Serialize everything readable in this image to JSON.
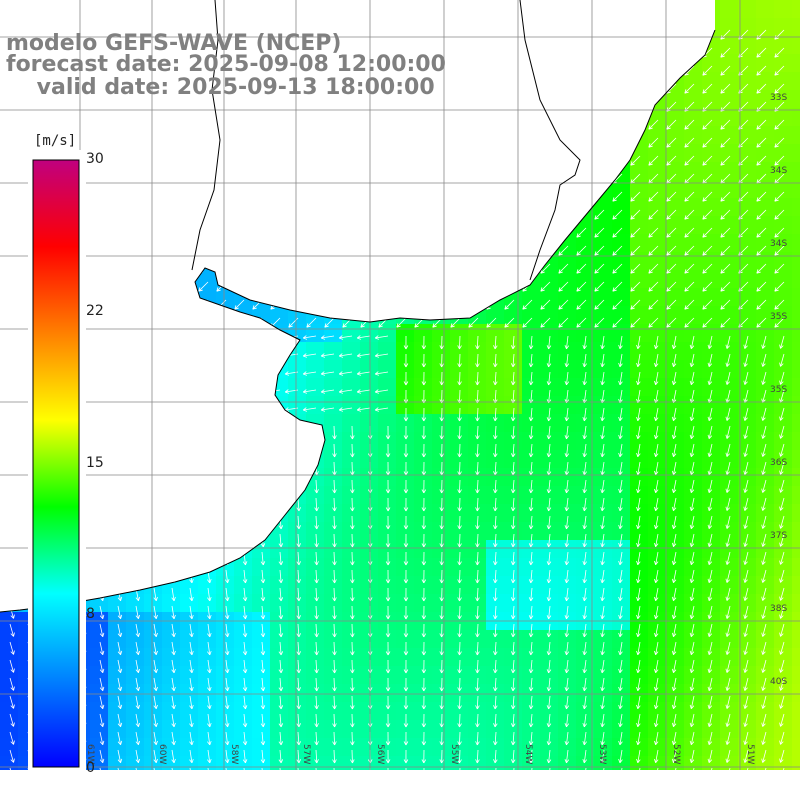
{
  "title": {
    "line1": "modelo GEFS-WAVE (NCEP)",
    "line2": "forecast date: 2025-09-08 12:00:00",
    "line3": "    valid date: 2025-09-13 18:00:00"
  },
  "colorbar": {
    "unit": "[m/s]",
    "ticks": [
      "30",
      "22",
      "15",
      "8",
      "0"
    ],
    "tick_values": [
      30,
      22,
      15,
      8,
      0
    ],
    "range": [
      0,
      30
    ],
    "colors": [
      "#0000ff",
      "#0080ff",
      "#00ffff",
      "#00ff00",
      "#ffff00",
      "#ff8000",
      "#ff0000",
      "#c0007f"
    ]
  },
  "map": {
    "lon_labels": [
      "61W",
      "60W",
      "58W",
      "57W",
      "56W",
      "55W",
      "54W",
      "53W",
      "52W",
      "51W"
    ],
    "lat_labels": [
      "33S",
      "34S",
      "34S",
      "35S",
      "35S",
      "36S",
      "37S",
      "38S",
      "40S"
    ],
    "land_color": "#ffffff",
    "coast_color": "#000000",
    "grid_color": "#888888",
    "vector_color": "#ffffff"
  }
}
